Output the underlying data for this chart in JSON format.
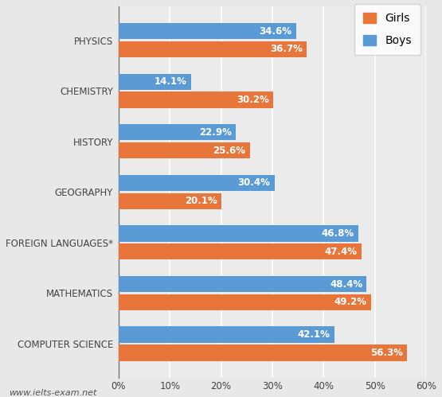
{
  "categories": [
    "PHYSICS",
    "CHEMISTRY",
    "HISTORY",
    "GEOGRAPHY",
    "FOREIGN LANGUAGES*",
    "MATHEMATICS",
    "COMPUTER SCIENCE"
  ],
  "girls_values": [
    36.7,
    30.2,
    25.6,
    20.1,
    47.4,
    49.2,
    56.3
  ],
  "boys_values": [
    34.6,
    14.1,
    22.9,
    30.4,
    46.8,
    48.4,
    42.1
  ],
  "girls_color": "#E8763A",
  "boys_color": "#5B9BD5",
  "background_color": "#E8E8E8",
  "plot_bg_color": "#EBEBEB",
  "xlim": [
    0,
    60
  ],
  "xtick_labels": [
    "0%",
    "10%",
    "20%",
    "30%",
    "40%",
    "50%",
    "60%"
  ],
  "xtick_values": [
    0,
    10,
    20,
    30,
    40,
    50,
    60
  ],
  "bar_height": 0.32,
  "bar_gap": 0.04,
  "label_fontsize": 8.5,
  "tick_fontsize": 8.5,
  "legend_fontsize": 10,
  "watermark": "www.ielts-exam.net",
  "girls_label": "Girls",
  "boys_label": "Boys"
}
